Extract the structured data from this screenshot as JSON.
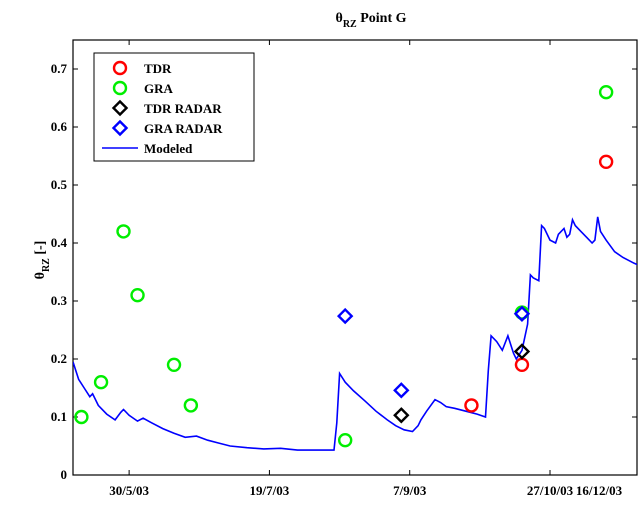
{
  "chart_data": {
    "type": "scatter",
    "title": "θ",
    "title_sub": "RZ",
    "title_rest": " Point G",
    "ylabel": "θ",
    "ylabel_sub": "RZ",
    "ylabel_rest": " [-]",
    "xlabel": "",
    "grid": false,
    "legend_position": "top-left",
    "ylim": [
      0,
      0.75
    ],
    "yticks": [
      0,
      0.1,
      0.2,
      0.3,
      0.4,
      0.5,
      0.6,
      0.7
    ],
    "ytick_labels": [
      "0",
      "0.1",
      "0.2",
      "0.3",
      "0.4",
      "0.5",
      "0.6",
      "0.7"
    ],
    "xlim_days": [
      0,
      201
    ],
    "x_origin_date": "2003-05-10",
    "xticks_days": [
      20,
      70,
      120,
      170
    ],
    "xtick_labels": [
      "30/5/03",
      "19/7/03",
      "7/9/03",
      "27/10/03",
      "16/12/03"
    ],
    "xticks_labels_days": [
      20,
      70,
      120,
      170,
      220
    ],
    "series": [
      {
        "name": "TDR",
        "marker": "circle",
        "color": "#ff0000",
        "points": [
          {
            "x": 142,
            "y": 0.12
          },
          {
            "x": 160,
            "y": 0.19
          },
          {
            "x": 190,
            "y": 0.54
          }
        ]
      },
      {
        "name": "GRA",
        "marker": "circle",
        "color": "#00ee00",
        "points": [
          {
            "x": 3,
            "y": 0.1
          },
          {
            "x": 10,
            "y": 0.16
          },
          {
            "x": 18,
            "y": 0.42
          },
          {
            "x": 23,
            "y": 0.31
          },
          {
            "x": 36,
            "y": 0.19
          },
          {
            "x": 42,
            "y": 0.12
          },
          {
            "x": 97,
            "y": 0.06
          },
          {
            "x": 160,
            "y": 0.28
          },
          {
            "x": 190,
            "y": 0.66
          }
        ]
      },
      {
        "name": "TDR RADAR",
        "marker": "diamond",
        "color": "#000000",
        "points": [
          {
            "x": 117,
            "y": 0.103
          },
          {
            "x": 160,
            "y": 0.213
          }
        ]
      },
      {
        "name": "GRA RADAR",
        "marker": "diamond",
        "color": "#0000ff",
        "points": [
          {
            "x": 97,
            "y": 0.274
          },
          {
            "x": 117,
            "y": 0.146
          },
          {
            "x": 160,
            "y": 0.278
          }
        ]
      },
      {
        "name": "Modeled",
        "marker": "line",
        "color": "#0000ff",
        "points": [
          {
            "x": 0,
            "y": 0.195
          },
          {
            "x": 2,
            "y": 0.165
          },
          {
            "x": 4,
            "y": 0.15
          },
          {
            "x": 6,
            "y": 0.135
          },
          {
            "x": 7,
            "y": 0.14
          },
          {
            "x": 9,
            "y": 0.12
          },
          {
            "x": 12,
            "y": 0.105
          },
          {
            "x": 15,
            "y": 0.095
          },
          {
            "x": 17,
            "y": 0.108
          },
          {
            "x": 18,
            "y": 0.113
          },
          {
            "x": 20,
            "y": 0.103
          },
          {
            "x": 23,
            "y": 0.093
          },
          {
            "x": 25,
            "y": 0.098
          },
          {
            "x": 28,
            "y": 0.09
          },
          {
            "x": 32,
            "y": 0.08
          },
          {
            "x": 36,
            "y": 0.072
          },
          {
            "x": 40,
            "y": 0.065
          },
          {
            "x": 44,
            "y": 0.067
          },
          {
            "x": 48,
            "y": 0.06
          },
          {
            "x": 52,
            "y": 0.055
          },
          {
            "x": 56,
            "y": 0.05
          },
          {
            "x": 62,
            "y": 0.047
          },
          {
            "x": 68,
            "y": 0.045
          },
          {
            "x": 74,
            "y": 0.046
          },
          {
            "x": 80,
            "y": 0.043
          },
          {
            "x": 88,
            "y": 0.043
          },
          {
            "x": 93,
            "y": 0.043
          },
          {
            "x": 94,
            "y": 0.09
          },
          {
            "x": 95,
            "y": 0.175
          },
          {
            "x": 97,
            "y": 0.16
          },
          {
            "x": 100,
            "y": 0.145
          },
          {
            "x": 104,
            "y": 0.128
          },
          {
            "x": 108,
            "y": 0.11
          },
          {
            "x": 112,
            "y": 0.095
          },
          {
            "x": 115,
            "y": 0.085
          },
          {
            "x": 118,
            "y": 0.078
          },
          {
            "x": 121,
            "y": 0.075
          },
          {
            "x": 123,
            "y": 0.085
          },
          {
            "x": 124,
            "y": 0.095
          },
          {
            "x": 126,
            "y": 0.11
          },
          {
            "x": 129,
            "y": 0.13
          },
          {
            "x": 131,
            "y": 0.125
          },
          {
            "x": 133,
            "y": 0.118
          },
          {
            "x": 136,
            "y": 0.115
          },
          {
            "x": 140,
            "y": 0.11
          },
          {
            "x": 144,
            "y": 0.105
          },
          {
            "x": 147,
            "y": 0.1
          },
          {
            "x": 148,
            "y": 0.18
          },
          {
            "x": 149,
            "y": 0.24
          },
          {
            "x": 151,
            "y": 0.23
          },
          {
            "x": 153,
            "y": 0.215
          },
          {
            "x": 155,
            "y": 0.24
          },
          {
            "x": 157,
            "y": 0.21
          },
          {
            "x": 158,
            "y": 0.2
          },
          {
            "x": 160,
            "y": 0.215
          },
          {
            "x": 162,
            "y": 0.26
          },
          {
            "x": 163,
            "y": 0.345
          },
          {
            "x": 164,
            "y": 0.34
          },
          {
            "x": 166,
            "y": 0.335
          },
          {
            "x": 167,
            "y": 0.43
          },
          {
            "x": 168,
            "y": 0.425
          },
          {
            "x": 170,
            "y": 0.405
          },
          {
            "x": 172,
            "y": 0.4
          },
          {
            "x": 173,
            "y": 0.415
          },
          {
            "x": 175,
            "y": 0.425
          },
          {
            "x": 176,
            "y": 0.41
          },
          {
            "x": 177,
            "y": 0.415
          },
          {
            "x": 178,
            "y": 0.44
          },
          {
            "x": 179,
            "y": 0.43
          },
          {
            "x": 181,
            "y": 0.42
          },
          {
            "x": 183,
            "y": 0.41
          },
          {
            "x": 185,
            "y": 0.4
          },
          {
            "x": 186,
            "y": 0.405
          },
          {
            "x": 187,
            "y": 0.445
          },
          {
            "x": 188,
            "y": 0.42
          },
          {
            "x": 190,
            "y": 0.405
          },
          {
            "x": 193,
            "y": 0.385
          },
          {
            "x": 196,
            "y": 0.375
          },
          {
            "x": 200,
            "y": 0.365
          },
          {
            "x": 205,
            "y": 0.355
          },
          {
            "x": 210,
            "y": 0.345
          },
          {
            "x": 214,
            "y": 0.335
          },
          {
            "x": 215,
            "y": 0.375
          },
          {
            "x": 216,
            "y": 0.455
          },
          {
            "x": 217,
            "y": 0.425
          },
          {
            "x": 218,
            "y": 0.415
          },
          {
            "x": 219,
            "y": 0.435
          },
          {
            "x": 220,
            "y": 0.405
          },
          {
            "x": 221,
            "y": 0.41
          },
          {
            "x": 222,
            "y": 0.43
          },
          {
            "x": 223,
            "y": 0.425
          },
          {
            "x": 224,
            "y": 0.435
          },
          {
            "x": 225,
            "y": 0.43
          },
          {
            "x": 226,
            "y": 0.415
          },
          {
            "x": 227,
            "y": 0.405
          },
          {
            "x": 228,
            "y": 0.42
          },
          {
            "x": 229,
            "y": 0.425
          }
        ]
      }
    ]
  }
}
